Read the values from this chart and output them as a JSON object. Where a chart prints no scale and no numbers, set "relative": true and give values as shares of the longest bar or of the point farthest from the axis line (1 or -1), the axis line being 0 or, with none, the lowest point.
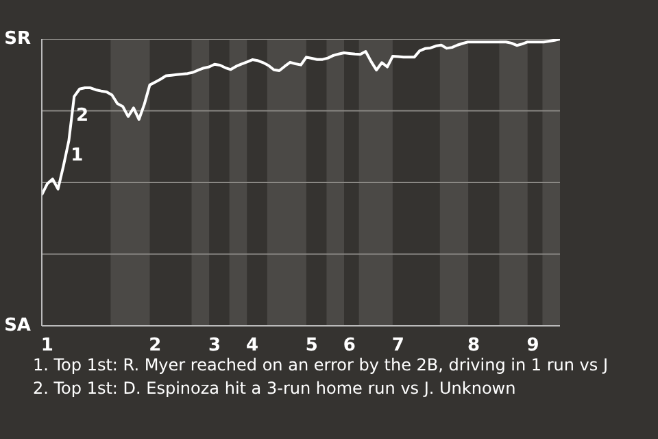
{
  "chart_data": {
    "type": "line",
    "relative": true,
    "categories": [
      null,
      "1",
      null,
      null,
      null,
      null,
      null,
      null,
      null,
      null,
      null,
      null,
      null,
      null,
      null,
      null,
      null,
      null,
      null,
      null,
      null,
      "2",
      null,
      null,
      null,
      null,
      null,
      null,
      null,
      null,
      null,
      null,
      "3",
      null,
      null,
      null,
      null,
      null,
      null,
      "4",
      null,
      null,
      null,
      null,
      null,
      null,
      null,
      null,
      null,
      null,
      "5",
      null,
      null,
      null,
      null,
      null,
      null,
      "6",
      null,
      null,
      null,
      null,
      null,
      null,
      null,
      null,
      "7",
      null,
      null,
      null,
      null,
      null,
      null,
      null,
      null,
      null,
      null,
      null,
      null,
      null,
      "8",
      null,
      null,
      null,
      null,
      null,
      null,
      null,
      null,
      null,
      null,
      "9",
      null,
      null,
      null,
      null,
      null
    ],
    "grid": "y",
    "line_style": "solid",
    "series": [
      {
        "color": "#ffffff",
        "values": [
          0.457,
          0.495,
          0.512,
          0.477,
          0.557,
          0.645,
          0.8,
          0.826,
          0.83,
          0.83,
          0.823,
          0.819,
          0.816,
          0.805,
          0.775,
          0.765,
          0.73,
          0.76,
          0.72,
          0.773,
          0.84,
          0.85,
          0.86,
          0.872,
          0.874,
          0.876,
          0.878,
          0.88,
          0.884,
          0.892,
          0.899,
          0.903,
          0.912,
          0.909,
          0.9,
          0.894,
          0.905,
          0.913,
          0.92,
          0.928,
          0.925,
          0.918,
          0.908,
          0.893,
          0.89,
          0.905,
          0.919,
          0.914,
          0.91,
          0.937,
          0.933,
          0.929,
          0.929,
          0.934,
          0.943,
          0.948,
          0.952,
          0.95,
          0.948,
          0.947,
          0.957,
          0.922,
          0.892,
          0.918,
          0.903,
          0.94,
          0.939,
          0.937,
          0.937,
          0.937,
          0.959,
          0.967,
          0.969,
          0.976,
          0.979,
          0.968,
          0.971,
          0.979,
          0.985,
          0.99,
          0.99,
          0.99,
          0.99,
          0.99,
          0.99,
          0.99,
          0.99,
          0.986,
          0.978,
          0.983,
          0.99,
          0.99,
          0.99,
          0.99,
          0.993,
          0.996,
          1
        ]
      }
    ],
    "annotations": [
      "SR",
      "SA",
      "1",
      "2",
      "1. Top 1st: R. Myer reached on an error by the 2B, driving in 1 run vs J",
      "2. Top 1st: D. Espinoza hit a 3-run home run vs J. Unknown"
    ]
  }
}
